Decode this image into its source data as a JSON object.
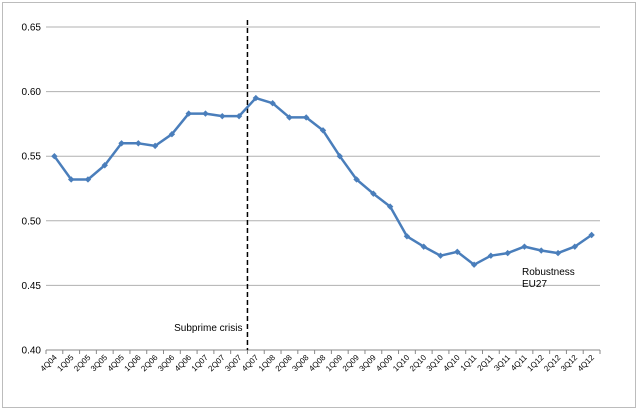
{
  "chart_data": {
    "type": "line",
    "title": "",
    "xlabel": "",
    "ylabel": "",
    "ylim": [
      0.4,
      0.65
    ],
    "yticks": [
      "0.40",
      "0.45",
      "0.50",
      "0.55",
      "0.60",
      "0.65"
    ],
    "grid": "horizontal",
    "categories": [
      "4Q04",
      "1Q05",
      "2Q05",
      "3Q05",
      "4Q05",
      "1Q06",
      "2Q06",
      "3Q06",
      "4Q06",
      "1Q07",
      "2Q07",
      "3Q07",
      "4Q07",
      "1Q08",
      "2Q08",
      "3Q08",
      "4Q08",
      "1Q09",
      "2Q09",
      "3Q09",
      "4Q09",
      "1Q10",
      "2Q10",
      "3Q10",
      "4Q10",
      "1Q11",
      "2Q11",
      "3Q11",
      "4Q11",
      "1Q12",
      "2Q12",
      "3Q12",
      "4Q12"
    ],
    "tick_labels": [
      "4Q04",
      "1Q05",
      "2Q05",
      "3Q05",
      "4Q05",
      "1Q06",
      "2Q06",
      "3Q06",
      "4Q06",
      "1Q07",
      "2Q07",
      "3Q07",
      "4Q07",
      "1Q08",
      "2Q08",
      "3Q08",
      "4Q08",
      "1Q09",
      "2Q09",
      "3Q09",
      "4Q09",
      "1Q10",
      "2Q10",
      "3Q10",
      "4Q10",
      "1Q11",
      "2Q11",
      "3Q11",
      "4Q11",
      "1Q12",
      "2Q12",
      "3Q12",
      "4Q12"
    ],
    "series": [
      {
        "color": "#4a7ebb",
        "values": [
          0.55,
          0.532,
          0.532,
          0.543,
          0.56,
          0.56,
          0.558,
          0.567,
          0.583,
          0.583,
          0.581,
          0.581,
          0.595,
          0.591,
          0.58,
          0.58,
          0.57,
          0.55,
          0.532,
          0.521,
          0.511,
          0.488,
          0.48,
          0.473,
          0.476,
          0.466,
          0.473,
          0.475,
          0.48,
          0.477,
          0.475,
          0.48,
          0.489
        ]
      }
    ],
    "annotations": {
      "crisis_label": "Subprime crisis",
      "crisis_after_category": "3Q07",
      "series_label_line1": "Robustness",
      "series_label_line2": "EU27"
    }
  }
}
